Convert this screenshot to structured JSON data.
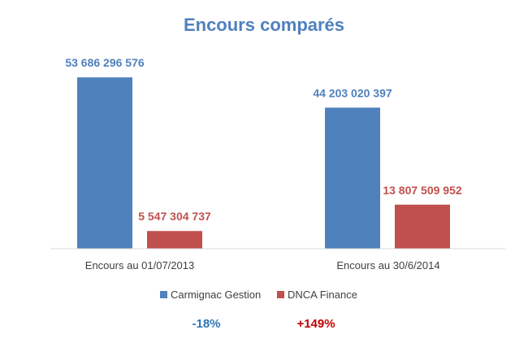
{
  "chart_data": {
    "type": "bar",
    "title": "Encours comparés",
    "categories": [
      "Encours au 01/07/2013",
      "Encours au 30/6/2014"
    ],
    "series": [
      {
        "name": "Carmignac Gestion",
        "color": "#4F81BD",
        "label_color": "#4F81BD",
        "values": [
          53686296576,
          44203020397
        ],
        "labels": [
          "53 686 296 576",
          "44 203 020 397"
        ]
      },
      {
        "name": "DNCA Finance",
        "color": "#C0504D",
        "label_color": "#C0504D",
        "values": [
          5547304737,
          13807509952
        ],
        "labels": [
          "5 547 304 737",
          "13 807 509 952"
        ]
      }
    ],
    "ylim": [
      0,
      55000000000
    ],
    "grid": false,
    "legend": "bottom",
    "title_color": "#4F81BD",
    "notes": [
      {
        "text": "-18%",
        "color": "#2E75B6"
      },
      {
        "text": "+149%",
        "color": "#C00000"
      }
    ]
  }
}
